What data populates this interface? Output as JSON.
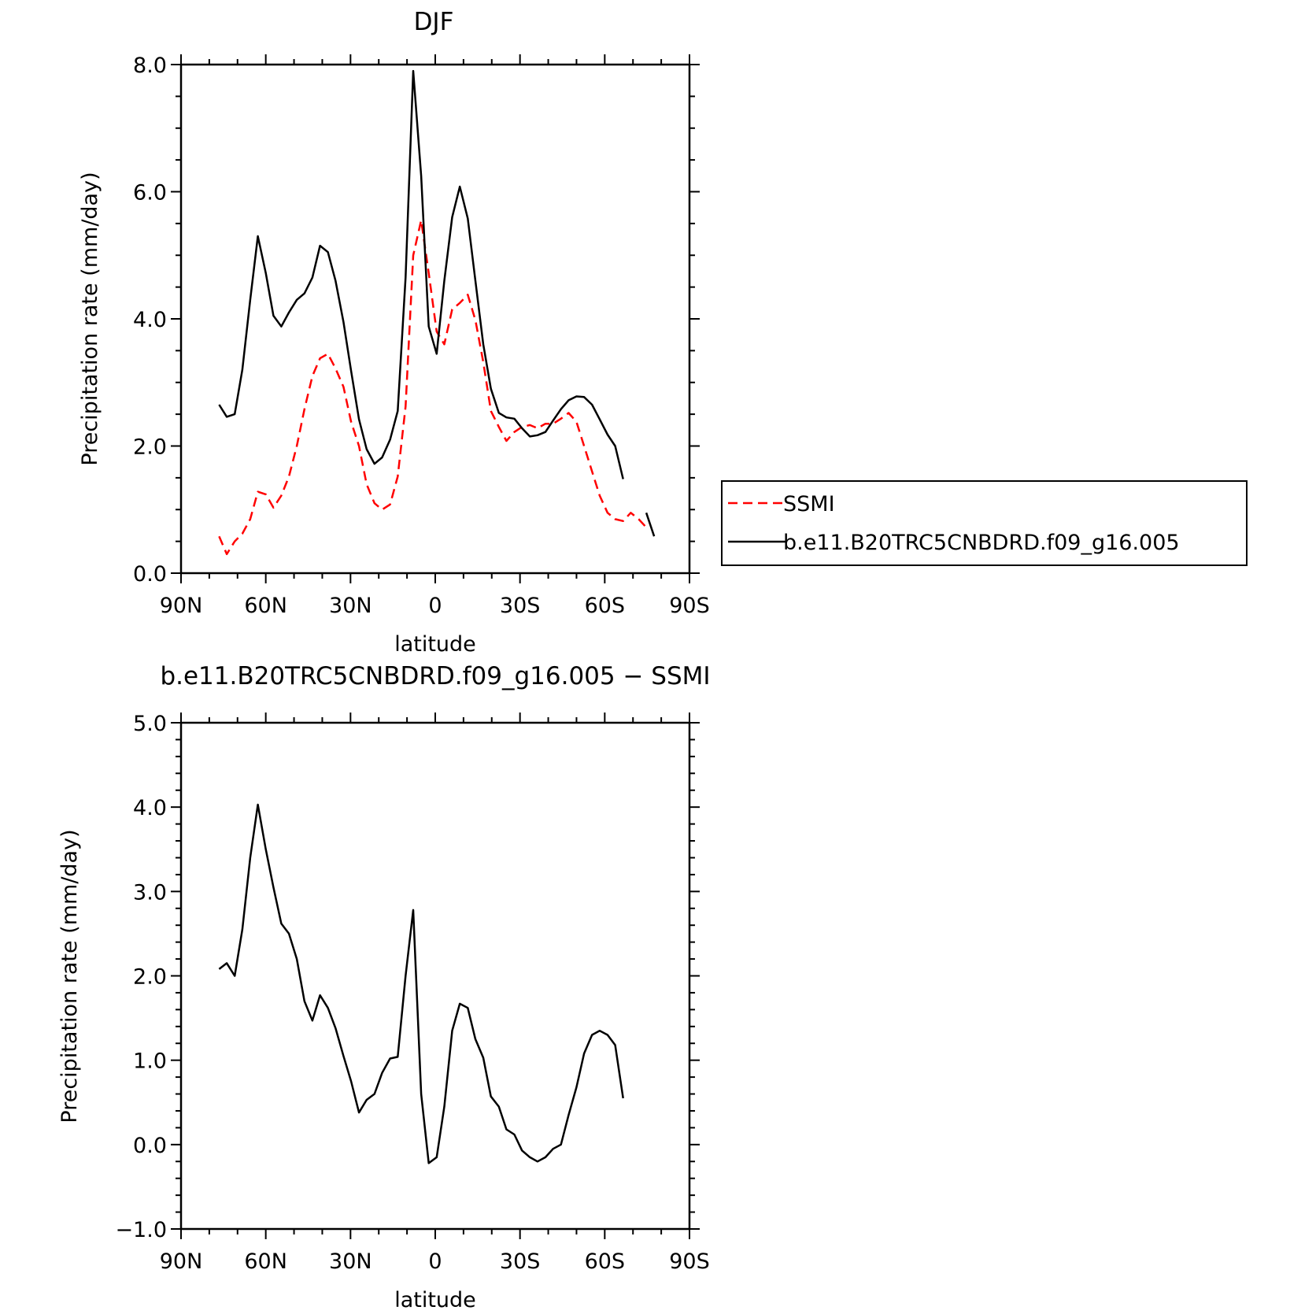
{
  "chart_data": [
    {
      "type": "line",
      "title": "DJF",
      "xlabel": "latitude",
      "ylabel": "Precipitation rate (mm/day)",
      "xlim": [
        90,
        -90
      ],
      "ylim": [
        0,
        8
      ],
      "xticks": [
        90,
        60,
        30,
        0,
        -30,
        -60,
        -90
      ],
      "xtick_labels": [
        "90N",
        "60N",
        "30N",
        "0",
        "30S",
        "60S",
        "90S"
      ],
      "yticks": [
        0,
        2,
        4,
        6,
        8
      ],
      "ytick_labels": [
        "0.0",
        "2.0",
        "4.0",
        "6.0",
        "8.0"
      ],
      "legend_position": "right",
      "series": [
        {
          "name": "SSMI",
          "color": "#ff0000",
          "dash": "dashed",
          "segments": [
            [
              [
                76.5,
                0.58
              ],
              [
                73.8,
                0.3
              ],
              [
                71,
                0.5
              ],
              [
                68.3,
                0.62
              ],
              [
                65.5,
                0.85
              ],
              [
                62.8,
                1.28
              ],
              [
                60,
                1.24
              ],
              [
                57.3,
                1.03
              ],
              [
                54.5,
                1.22
              ],
              [
                51.8,
                1.52
              ],
              [
                49,
                2.0
              ],
              [
                46.3,
                2.58
              ],
              [
                43.5,
                3.1
              ],
              [
                40.8,
                3.38
              ],
              [
                38,
                3.45
              ],
              [
                35.3,
                3.22
              ],
              [
                32.5,
                2.93
              ],
              [
                29.8,
                2.38
              ],
              [
                27,
                2.0
              ],
              [
                24.3,
                1.4
              ],
              [
                21.5,
                1.1
              ],
              [
                18.8,
                1.0
              ],
              [
                16,
                1.08
              ],
              [
                13.3,
                1.52
              ],
              [
                10.5,
                2.62
              ],
              [
                7.8,
                5.0
              ],
              [
                5.0,
                5.55
              ],
              [
                2.3,
                4.72
              ],
              [
                -0.5,
                3.8
              ],
              [
                -3.2,
                3.6
              ],
              [
                -6,
                4.15
              ],
              [
                -8.7,
                4.25
              ],
              [
                -11.5,
                4.38
              ],
              [
                -14.2,
                3.98
              ],
              [
                -17,
                3.32
              ],
              [
                -19.7,
                2.55
              ],
              [
                -22.5,
                2.3
              ],
              [
                -25.2,
                2.08
              ],
              [
                -28,
                2.22
              ],
              [
                -30.7,
                2.3
              ],
              [
                -33.5,
                2.33
              ],
              [
                -36.2,
                2.28
              ],
              [
                -39,
                2.35
              ],
              [
                -41.7,
                2.35
              ],
              [
                -44.5,
                2.43
              ],
              [
                -47.2,
                2.52
              ],
              [
                -50,
                2.38
              ],
              [
                -52.7,
                2.0
              ],
              [
                -55.5,
                1.6
              ],
              [
                -58.2,
                1.22
              ],
              [
                -61,
                0.95
              ],
              [
                -63.7,
                0.85
              ],
              [
                -66.5,
                0.82
              ],
              [
                -69.2,
                0.95
              ],
              [
                -72,
                0.85
              ],
              [
                -74.7,
                0.72
              ]
            ]
          ]
        },
        {
          "name": "b.e11.B20TRC5CNBDRD.f09_g16.005",
          "color": "#000000",
          "dash": "solid",
          "segments": [
            [
              [
                76.5,
                2.65
              ],
              [
                73.8,
                2.46
              ],
              [
                71,
                2.5
              ],
              [
                68.3,
                3.2
              ],
              [
                65.5,
                4.3
              ],
              [
                62.8,
                5.3
              ],
              [
                60,
                4.72
              ],
              [
                57.3,
                4.05
              ],
              [
                54.5,
                3.88
              ],
              [
                51.8,
                4.1
              ],
              [
                49,
                4.3
              ],
              [
                46.3,
                4.4
              ],
              [
                43.5,
                4.65
              ],
              [
                40.8,
                5.15
              ],
              [
                38,
                5.05
              ],
              [
                35.3,
                4.6
              ],
              [
                32.5,
                3.95
              ],
              [
                29.8,
                3.18
              ],
              [
                27,
                2.42
              ],
              [
                24.3,
                1.95
              ],
              [
                21.5,
                1.72
              ],
              [
                18.8,
                1.82
              ],
              [
                16,
                2.1
              ],
              [
                13.3,
                2.55
              ],
              [
                10.5,
                4.65
              ],
              [
                7.8,
                7.9
              ],
              [
                5.0,
                6.25
              ],
              [
                2.3,
                3.88
              ],
              [
                -0.5,
                3.45
              ],
              [
                -3.2,
                4.6
              ],
              [
                -6,
                5.6
              ],
              [
                -8.7,
                6.08
              ],
              [
                -11.5,
                5.58
              ],
              [
                -14.2,
                4.6
              ],
              [
                -17,
                3.6
              ],
              [
                -19.7,
                2.9
              ],
              [
                -22.5,
                2.52
              ],
              [
                -25.2,
                2.45
              ],
              [
                -28,
                2.43
              ],
              [
                -30.7,
                2.28
              ],
              [
                -33.5,
                2.15
              ],
              [
                -36.2,
                2.17
              ],
              [
                -39,
                2.22
              ],
              [
                -41.7,
                2.4
              ],
              [
                -44.5,
                2.58
              ],
              [
                -47.2,
                2.72
              ],
              [
                -50,
                2.78
              ],
              [
                -52.7,
                2.77
              ],
              [
                -55.5,
                2.65
              ],
              [
                -58.2,
                2.42
              ],
              [
                -61,
                2.18
              ],
              [
                -63.7,
                2.0
              ],
              [
                -66.5,
                1.48
              ]
            ],
            [
              [
                -74.7,
                0.95
              ],
              [
                -77.5,
                0.58
              ]
            ]
          ]
        }
      ]
    },
    {
      "type": "line",
      "title": "b.e11.B20TRC5CNBDRD.f09_g16.005 − SSMI",
      "xlabel": "latitude",
      "ylabel": "Precipitation rate (mm/day)",
      "xlim": [
        90,
        -90
      ],
      "ylim": [
        -1,
        5
      ],
      "xticks": [
        90,
        60,
        30,
        0,
        -30,
        -60,
        -90
      ],
      "xtick_labels": [
        "90N",
        "60N",
        "30N",
        "0",
        "30S",
        "60S",
        "90S"
      ],
      "yticks": [
        -1,
        0,
        1,
        2,
        3,
        4,
        5
      ],
      "ytick_labels": [
        "−1.0",
        "0.0",
        "1.0",
        "2.0",
        "3.0",
        "4.0",
        "5.0"
      ],
      "series": [
        {
          "color": "#000000",
          "dash": "solid",
          "segments": [
            [
              [
                76.5,
                2.08
              ],
              [
                73.8,
                2.15
              ],
              [
                71,
                2.0
              ],
              [
                68.3,
                2.55
              ],
              [
                65.5,
                3.4
              ],
              [
                62.8,
                4.03
              ],
              [
                60,
                3.5
              ],
              [
                57.3,
                3.05
              ],
              [
                54.5,
                2.62
              ],
              [
                51.8,
                2.5
              ],
              [
                49,
                2.2
              ],
              [
                46.3,
                1.7
              ],
              [
                43.5,
                1.47
              ],
              [
                40.8,
                1.77
              ],
              [
                38,
                1.62
              ],
              [
                35.3,
                1.38
              ],
              [
                32.5,
                1.05
              ],
              [
                29.8,
                0.75
              ],
              [
                27,
                0.38
              ],
              [
                24.3,
                0.53
              ],
              [
                21.5,
                0.6
              ],
              [
                18.8,
                0.85
              ],
              [
                16,
                1.02
              ],
              [
                13.3,
                1.04
              ],
              [
                10.5,
                2.0
              ],
              [
                7.8,
                2.78
              ],
              [
                5.0,
                0.6
              ],
              [
                2.3,
                -0.22
              ],
              [
                -0.5,
                -0.15
              ],
              [
                -3.2,
                0.45
              ],
              [
                -6,
                1.35
              ],
              [
                -8.7,
                1.67
              ],
              [
                -11.5,
                1.62
              ],
              [
                -14.2,
                1.25
              ],
              [
                -17,
                1.03
              ],
              [
                -19.7,
                0.57
              ],
              [
                -22.5,
                0.45
              ],
              [
                -25.2,
                0.18
              ],
              [
                -28,
                0.12
              ],
              [
                -30.7,
                -0.07
              ],
              [
                -33.5,
                -0.15
              ],
              [
                -36.2,
                -0.2
              ],
              [
                -39,
                -0.15
              ],
              [
                -41.7,
                -0.05
              ],
              [
                -44.5,
                0.0
              ],
              [
                -47.2,
                0.35
              ],
              [
                -50,
                0.68
              ],
              [
                -52.7,
                1.08
              ],
              [
                -55.5,
                1.3
              ],
              [
                -58.2,
                1.35
              ],
              [
                -61,
                1.3
              ],
              [
                -63.7,
                1.18
              ],
              [
                -66.5,
                0.55
              ]
            ]
          ]
        }
      ]
    }
  ]
}
